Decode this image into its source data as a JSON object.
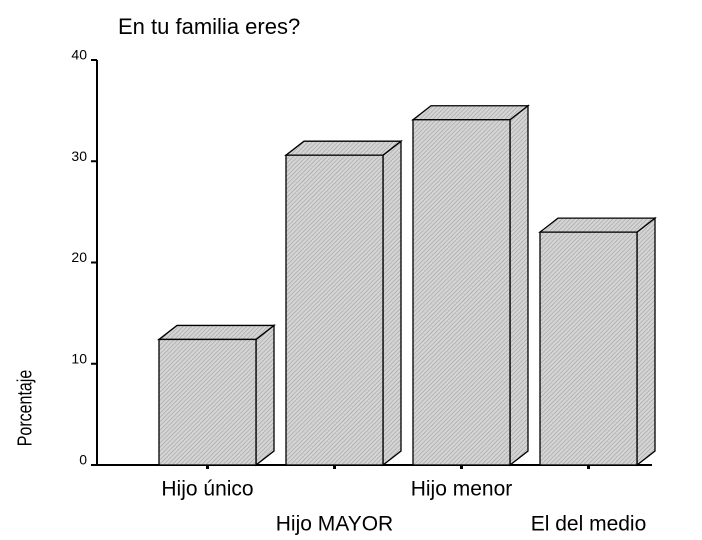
{
  "chart_data": {
    "type": "bar3d",
    "title": "En tu familia eres?",
    "y_label": "Porcentaje",
    "categories": [
      "Hijo único",
      "Hijo MAYOR",
      "Hijo menor",
      "El del medio"
    ],
    "values": [
      12.4,
      30.6,
      34.1,
      23.0
    ],
    "color": "#c8c8c8",
    "ylim": [
      0,
      40
    ],
    "yticks": [
      0,
      10,
      20,
      30,
      40
    ]
  }
}
